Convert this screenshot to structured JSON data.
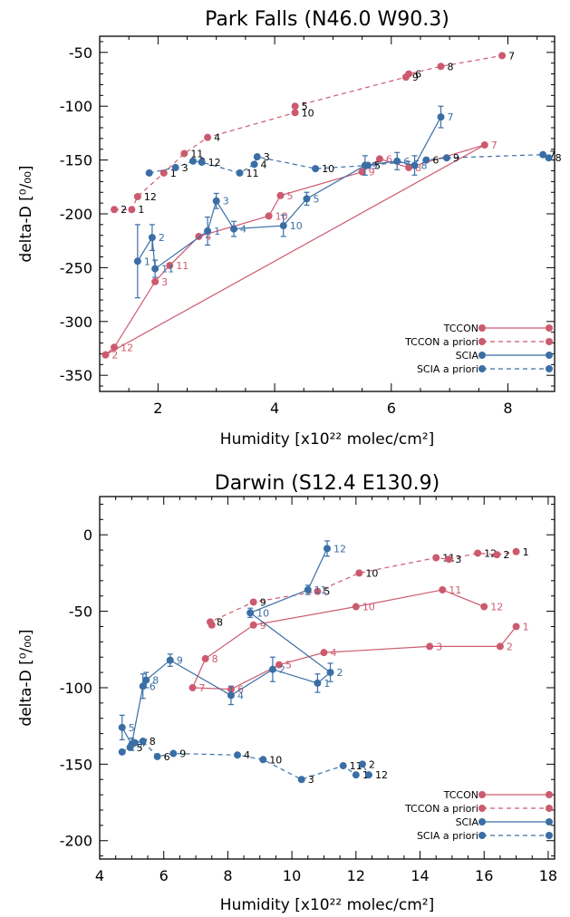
{
  "colors": {
    "tccon": "#cc5a6e",
    "scia": "#3a6ea5",
    "black": "#000000"
  },
  "chart_data": [
    {
      "type": "line",
      "title": "Park Falls (N46.0 W90.3)",
      "xlabel": "Humidity [x10²² molec/cm²]",
      "ylabel": "delta-D [⁰/₀₀]",
      "xlim": [
        1.0,
        8.8
      ],
      "ylim": [
        -365,
        -35
      ],
      "xticks": [
        2,
        4,
        6,
        8
      ],
      "yticks": [
        -350,
        -300,
        -250,
        -200,
        -150,
        -100,
        -50
      ],
      "legend_position": "bottom-right",
      "series": [
        {
          "name": "TCCON",
          "color": "tccon",
          "style": "solid",
          "label_color": "tccon",
          "points": [
            {
              "x": 1.1,
              "y": -331,
              "label": "2"
            },
            {
              "x": 1.25,
              "y": -324,
              "label": "12"
            },
            {
              "x": 1.95,
              "y": -263,
              "label": "3"
            },
            {
              "x": 2.2,
              "y": -248,
              "label": "11"
            },
            {
              "x": 2.7,
              "y": -221,
              "label": "4"
            },
            {
              "x": 3.9,
              "y": -202,
              "label": "10"
            },
            {
              "x": 4.1,
              "y": -183,
              "label": "5"
            },
            {
              "x": 5.5,
              "y": -161,
              "label": "9"
            },
            {
              "x": 5.8,
              "y": -149,
              "label": "6"
            },
            {
              "x": 6.3,
              "y": -157,
              "label": "8"
            },
            {
              "x": 7.6,
              "y": -136,
              "label": "7"
            },
            {
              "x": 1.1,
              "y": -331,
              "label": ""
            }
          ]
        },
        {
          "name": "TCCON a priori",
          "color": "tccon",
          "style": "dashed",
          "label_color": "black",
          "points": [
            {
              "x": 1.25,
              "y": -196,
              "label": "2"
            },
            {
              "x": 1.55,
              "y": -196,
              "label": "1"
            },
            {
              "x": 1.65,
              "y": -184,
              "label": "12"
            },
            {
              "x": 2.1,
              "y": -162,
              "label": "1"
            },
            {
              "x": 2.45,
              "y": -144,
              "label": "11"
            },
            {
              "x": 2.85,
              "y": -129,
              "label": "4"
            },
            {
              "x": 4.35,
              "y": -106,
              "label": "10"
            },
            {
              "x": 4.35,
              "y": -100,
              "label": "5"
            },
            {
              "x": 6.25,
              "y": -73,
              "label": "9"
            },
            {
              "x": 6.3,
              "y": -70,
              "label": "6"
            },
            {
              "x": 6.85,
              "y": -63,
              "label": "8"
            },
            {
              "x": 7.9,
              "y": -53,
              "label": "7"
            }
          ]
        },
        {
          "name": "SCIA",
          "color": "scia",
          "style": "solid",
          "label_color": "scia",
          "points": [
            {
              "x": 1.65,
              "y": -244,
              "err": 34,
              "label": "1"
            },
            {
              "x": 1.9,
              "y": -222,
              "err": 12,
              "label": "2"
            },
            {
              "x": 1.95,
              "y": -251,
              "err": 8,
              "label": "11"
            },
            {
              "x": 2.85,
              "y": -216,
              "err": 13,
              "label": "1"
            },
            {
              "x": 3.0,
              "y": -188,
              "err": 7,
              "label": "3"
            },
            {
              "x": 3.3,
              "y": -214,
              "err": 7,
              "label": "4"
            },
            {
              "x": 4.15,
              "y": -211,
              "err": 10,
              "label": "10"
            },
            {
              "x": 4.55,
              "y": -186,
              "err": 6,
              "label": "5"
            },
            {
              "x": 5.55,
              "y": -155,
              "err": 9,
              "label": "9"
            },
            {
              "x": 6.1,
              "y": -151,
              "err": 8,
              "label": "6"
            },
            {
              "x": 6.4,
              "y": -155,
              "err": 9,
              "label": "8"
            },
            {
              "x": 6.85,
              "y": -110,
              "err": 10,
              "label": "7"
            }
          ]
        },
        {
          "name": "SCIA a priori",
          "color": "scia",
          "style": "dashed",
          "label_color": "black",
          "points": [
            {
              "x": 1.85,
              "y": -162,
              "label": ""
            },
            {
              "x": 2.3,
              "y": -157,
              "label": "3"
            },
            {
              "x": 2.6,
              "y": -151,
              "label": "2"
            },
            {
              "x": 2.75,
              "y": -152,
              "label": "12"
            },
            {
              "x": 3.4,
              "y": -162,
              "label": "11"
            },
            {
              "x": 3.65,
              "y": -154,
              "label": "4"
            },
            {
              "x": 3.7,
              "y": -147,
              "label": "3"
            },
            {
              "x": 4.7,
              "y": -158,
              "label": "10"
            },
            {
              "x": 5.6,
              "y": -155,
              "label": "5"
            },
            {
              "x": 6.6,
              "y": -150,
              "label": "6"
            },
            {
              "x": 6.95,
              "y": -148,
              "label": "9"
            },
            {
              "x": 8.6,
              "y": -145,
              "label": "7"
            },
            {
              "x": 8.7,
              "y": -148,
              "label": "8"
            }
          ]
        }
      ]
    },
    {
      "type": "line",
      "title": "Darwin (S12.4 E130.9)",
      "xlabel": "Humidity [x10²² molec/cm²]",
      "ylabel": "delta-D [⁰/₀₀]",
      "xlim": [
        4,
        18.2
      ],
      "ylim": [
        -212,
        25
      ],
      "xticks": [
        4,
        6,
        8,
        10,
        12,
        14,
        16,
        18
      ],
      "yticks": [
        -200,
        -150,
        -100,
        -50,
        0
      ],
      "legend_position": "bottom-right",
      "series": [
        {
          "name": "TCCON",
          "color": "tccon",
          "style": "solid",
          "label_color": "tccon",
          "points": [
            {
              "x": 17.0,
              "y": -60,
              "label": "1"
            },
            {
              "x": 16.5,
              "y": -73,
              "label": "2"
            },
            {
              "x": 14.3,
              "y": -73,
              "label": "3"
            },
            {
              "x": 11.0,
              "y": -77,
              "label": "4"
            },
            {
              "x": 9.6,
              "y": -85,
              "label": "5"
            },
            {
              "x": 8.1,
              "y": -101,
              "label": "6"
            },
            {
              "x": 6.9,
              "y": -100,
              "label": "7"
            },
            {
              "x": 7.3,
              "y": -81,
              "label": "8"
            },
            {
              "x": 8.8,
              "y": -59,
              "label": "9"
            },
            {
              "x": 12.0,
              "y": -47,
              "label": "10"
            },
            {
              "x": 14.7,
              "y": -36,
              "label": "11"
            },
            {
              "x": 16.0,
              "y": -47,
              "label": "12"
            }
          ]
        },
        {
          "name": "TCCON a priori",
          "color": "tccon",
          "style": "dashed",
          "label_color": "black",
          "points": [
            {
              "x": 7.5,
              "y": -59,
              "label": ""
            },
            {
              "x": 7.45,
              "y": -57,
              "label": "8"
            },
            {
              "x": 8.8,
              "y": -44,
              "label": "9"
            },
            {
              "x": 10.8,
              "y": -37,
              "label": "5"
            },
            {
              "x": 12.1,
              "y": -25,
              "label": "10"
            },
            {
              "x": 14.5,
              "y": -15,
              "label": "11"
            },
            {
              "x": 14.9,
              "y": -16,
              "label": "3"
            },
            {
              "x": 15.8,
              "y": -12,
              "label": "12"
            },
            {
              "x": 16.4,
              "y": -13,
              "label": "2"
            },
            {
              "x": 17.0,
              "y": -11,
              "label": "1"
            }
          ]
        },
        {
          "name": "SCIA",
          "color": "scia",
          "style": "solid",
          "label_color": "scia",
          "points": [
            {
              "x": 4.7,
              "y": -126,
              "err": 8,
              "label": "5"
            },
            {
              "x": 5.0,
              "y": -137,
              "err": 4,
              "label": "7"
            },
            {
              "x": 5.35,
              "y": -99,
              "err": 8,
              "label": "6"
            },
            {
              "x": 5.45,
              "y": -95,
              "err": 5,
              "label": "8"
            },
            {
              "x": 6.2,
              "y": -82,
              "err": 4,
              "label": "9"
            },
            {
              "x": 8.1,
              "y": -105,
              "err": 6,
              "label": "4"
            },
            {
              "x": 9.4,
              "y": -88,
              "err": 8,
              "label": "2"
            },
            {
              "x": 10.8,
              "y": -97,
              "err": 6,
              "label": "1"
            },
            {
              "x": 11.2,
              "y": -90,
              "err": 6,
              "label": "2"
            },
            {
              "x": 8.7,
              "y": -51,
              "err": 3,
              "label": "10"
            },
            {
              "x": 10.5,
              "y": -36,
              "err": 3,
              "label": "11"
            },
            {
              "x": 11.1,
              "y": -9,
              "err": 5,
              "label": "12"
            }
          ]
        },
        {
          "name": "SCIA a priori",
          "color": "scia",
          "style": "dashed",
          "label_color": "black",
          "points": [
            {
              "x": 4.7,
              "y": -142,
              "label": ""
            },
            {
              "x": 4.95,
              "y": -139,
              "label": "5"
            },
            {
              "x": 5.1,
              "y": -136,
              "label": "7"
            },
            {
              "x": 5.35,
              "y": -135,
              "label": "8"
            },
            {
              "x": 5.8,
              "y": -145,
              "label": "6"
            },
            {
              "x": 6.3,
              "y": -143,
              "label": "9"
            },
            {
              "x": 8.3,
              "y": -144,
              "label": "4"
            },
            {
              "x": 9.1,
              "y": -147,
              "label": "10"
            },
            {
              "x": 10.3,
              "y": -160,
              "label": "3"
            },
            {
              "x": 11.6,
              "y": -151,
              "label": "11"
            },
            {
              "x": 12.0,
              "y": -157,
              "label": "1"
            },
            {
              "x": 12.2,
              "y": -150,
              "label": "2"
            },
            {
              "x": 12.4,
              "y": -157,
              "label": "12"
            }
          ]
        }
      ]
    }
  ]
}
